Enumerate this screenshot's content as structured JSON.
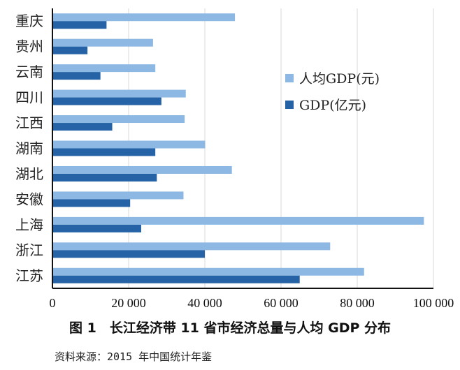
{
  "chart_data": {
    "type": "bar",
    "orientation": "horizontal",
    "categories": [
      "重庆",
      "贵州",
      "云南",
      "四川",
      "江西",
      "湖南",
      "湖北",
      "安徽",
      "上海",
      "浙江",
      "江苏"
    ],
    "series": [
      {
        "name": "人均GDP(元)",
        "color": "#8db8e3",
        "values": [
          47900,
          26400,
          27000,
          35000,
          34700,
          40100,
          47100,
          34400,
          97500,
          72900,
          81800
        ]
      },
      {
        "name": "GDP(亿元)",
        "color": "#2563a6",
        "values": [
          14200,
          9200,
          12600,
          28600,
          15700,
          27000,
          27400,
          20400,
          23300,
          40000,
          64900
        ]
      }
    ],
    "xlim": [
      0,
      100000
    ],
    "xticks": [
      0,
      20000,
      40000,
      60000,
      80000,
      100000
    ],
    "xtick_labels": [
      "0",
      "20 000",
      "40 000",
      "60 000",
      "80 000",
      "100 000"
    ],
    "grid": true,
    "legend": "right"
  },
  "caption": "图 1　长江经济带 11 省市经济总量与人均 GDP 分布",
  "source": "资料来源：2015 年中国统计年鉴"
}
